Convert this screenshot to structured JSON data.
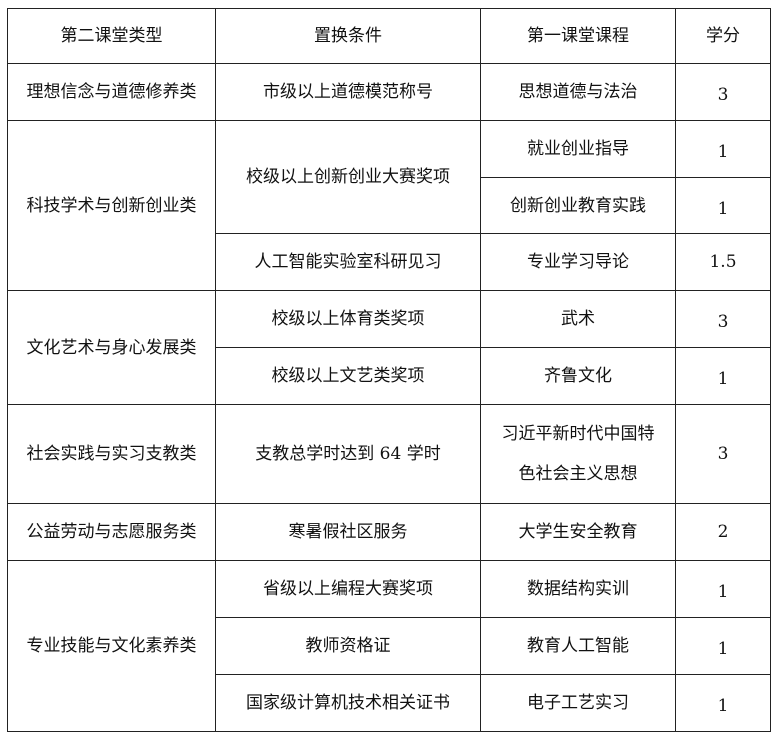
{
  "headers": [
    "第二课堂类型",
    "置换条件",
    "第一课堂课程",
    "学分"
  ],
  "groups": [
    {
      "type": "理想信念与道德修养类",
      "rows": [
        {
          "condition": "市级以上道德模范称号",
          "course": "思想道德与法治",
          "credit": "3"
        }
      ]
    },
    {
      "type": "科技学术与创新创业类",
      "rows": [
        {
          "condition": "校级以上创新创业大赛奖项",
          "course": "就业创业指导",
          "credit": "1"
        },
        {
          "course": "创新创业教育实践",
          "credit": "1"
        },
        {
          "condition": "人工智能实验室科研见习",
          "course": "专业学习导论",
          "credit": "1.5"
        }
      ]
    },
    {
      "type": "文化艺术与身心发展类",
      "rows": [
        {
          "condition": "校级以上体育类奖项",
          "course": "武术",
          "credit": "3"
        },
        {
          "condition": "校级以上文艺类奖项",
          "course": "齐鲁文化",
          "credit": "1"
        }
      ]
    },
    {
      "type": "社会实践与实习支教类",
      "rows": [
        {
          "condition": "支教总学时达到 64 学时",
          "course": "习近平新时代中国特色社会主义思想",
          "credit": "3"
        }
      ]
    },
    {
      "type": "公益劳动与志愿服务类",
      "rows": [
        {
          "condition": "寒暑假社区服务",
          "course": "大学生安全教育",
          "credit": "2"
        }
      ]
    },
    {
      "type": "专业技能与文化素养类",
      "rows": [
        {
          "condition": "省级以上编程大赛奖项",
          "course": "数据结构实训",
          "credit": "1"
        },
        {
          "condition": "教师资格证",
          "course": "教育人工智能",
          "credit": "1"
        },
        {
          "condition": "国家级计算机技术相关证书",
          "course": "电子工艺实习",
          "credit": "1"
        }
      ]
    }
  ]
}
